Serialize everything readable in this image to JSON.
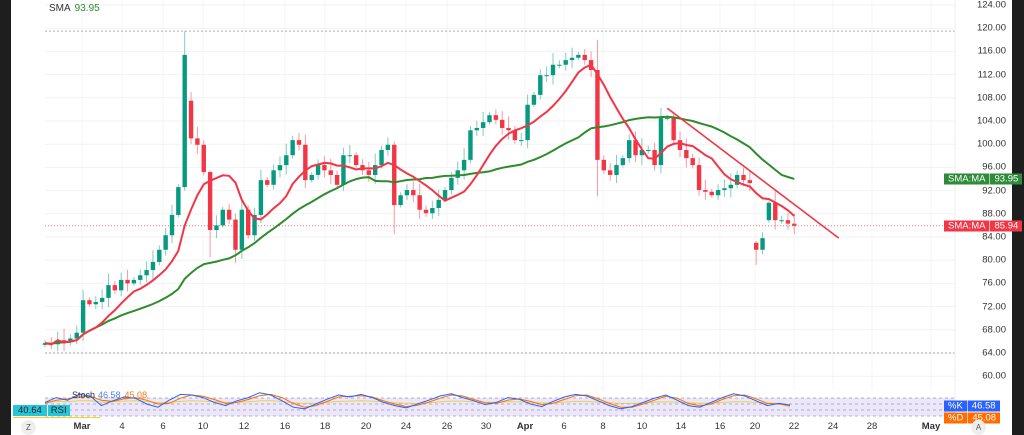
{
  "legend": {
    "name": "SMA",
    "value": "93.95"
  },
  "price_axis": [
    "124.00",
    "120.00",
    "116.00",
    "112.00",
    "108.00",
    "104.00",
    "100.00",
    "96.00",
    "92.00",
    "88.00",
    "84.00",
    "80.00",
    "76.00",
    "72.00",
    "68.00",
    "64.00",
    "60.00"
  ],
  "badges": {
    "sma_long": {
      "name": "SMA:MA",
      "value": "93.95",
      "color": "#2e8b3a"
    },
    "sma_short": {
      "name": "SMA:MA",
      "value": "85.94",
      "color": "#f23645"
    },
    "stoch_k": {
      "name": "%K",
      "value": "46.58",
      "color": "#2962ff"
    },
    "stoch_d": {
      "name": "%D",
      "value": "45.08",
      "color": "#ff6d00"
    }
  },
  "time_axis": [
    "Mar",
    "4",
    "6",
    "10",
    "12",
    "16",
    "18",
    "20",
    "24",
    "26",
    "30",
    "Apr",
    "6",
    "8",
    "10",
    "14",
    "16",
    "20",
    "22",
    "24",
    "28",
    "May"
  ],
  "buttons": {
    "z": "Z",
    "a": "A"
  },
  "oscillator": {
    "stoch_name": "Stoch",
    "k": "46.58",
    "d": "45.08",
    "rsi_name": "RSI",
    "rsi_value": "40.64"
  },
  "chart_data": {
    "type": "candlestick",
    "ylim": [
      58,
      125
    ],
    "closes": [
      65.7,
      65.5,
      66.2,
      65.9,
      66.5,
      67.5,
      73.1,
      72.4,
      72.8,
      73.5,
      75.7,
      74.8,
      76.6,
      76.0,
      76.6,
      77.4,
      78.3,
      79.7,
      81.8,
      84.3,
      87.8,
      92.6,
      115.4,
      101,
      99.9,
      95.2,
      85.2,
      86,
      88.7,
      87,
      81.8,
      88.7,
      84.3,
      87.8,
      93.8,
      93,
      95.5,
      96.4,
      98.1,
      100.7,
      99.9,
      93.8,
      94.7,
      96.4,
      95.5,
      94.7,
      93,
      98.1,
      98.1,
      96.4,
      95.5,
      94.7,
      96.4,
      99,
      99.9,
      89.5,
      91.2,
      92.1,
      91.2,
      88.7,
      88.1,
      89,
      90.4,
      92.1,
      94.2,
      95.5,
      97.3,
      102.4,
      102.8,
      103.8,
      105,
      104.2,
      102.8,
      102.4,
      100.7,
      100.7,
      106.8,
      108.5,
      111.9,
      111.9,
      113.7,
      113.7,
      114.5,
      114.9,
      115.4,
      114.5,
      112.8,
      97.3,
      95.5,
      94.7,
      96.4,
      97.6,
      100.7,
      98.1,
      99,
      99,
      96.4,
      104.5,
      104.5,
      100.7,
      99,
      97.6,
      96.4,
      92.1,
      91.8,
      91.2,
      92.1,
      92.4,
      93,
      94.7,
      93.8,
      93.3,
      81.8,
      83.8,
      89.9,
      86.9,
      86.9,
      86.3,
      85.94
    ],
    "overrides": {
      "22": [
        92.6,
        119.5,
        92.0,
        115.4
      ],
      "23": [
        107.5,
        109,
        100,
        101
      ],
      "26": [
        95.2,
        95.5,
        80.5,
        85.2
      ],
      "30": [
        87,
        88,
        79.5,
        81.8
      ],
      "55": [
        99.9,
        100.5,
        84.5,
        89.5
      ],
      "87": [
        112.8,
        118,
        91.0,
        97.3
      ],
      "112": [
        83,
        83.3,
        79.2,
        81.8
      ],
      "114": [
        86.9,
        90.2,
        86.5,
        89.9
      ]
    },
    "sma_short_period": 9,
    "sma_long_period": 30,
    "trendline": {
      "from": [
        98,
        106.2
      ],
      "to": [
        125,
        83.8
      ]
    },
    "range_high": 119.5,
    "range_low": 64,
    "last_price": 85.94,
    "oscillator": {
      "k": [
        55,
        70,
        62,
        80,
        75,
        45,
        60,
        72,
        68,
        50,
        40,
        62,
        80,
        78,
        70,
        55,
        45,
        60,
        70,
        85,
        78,
        60,
        40,
        35,
        50,
        65,
        78,
        72,
        80,
        70,
        55,
        45,
        38,
        50,
        62,
        75,
        82,
        70,
        60,
        48,
        55,
        70,
        65,
        50,
        42,
        58,
        72,
        80,
        75,
        60,
        45,
        35,
        42,
        55,
        68,
        78,
        62,
        45,
        40,
        55,
        70,
        82,
        75,
        60,
        45,
        52,
        46.58
      ],
      "d": [
        52,
        62,
        66,
        72,
        74,
        62,
        58,
        66,
        70,
        62,
        50,
        52,
        68,
        78,
        74,
        64,
        52,
        55,
        64,
        76,
        80,
        70,
        52,
        40,
        45,
        58,
        72,
        74,
        76,
        72,
        60,
        50,
        42,
        46,
        56,
        68,
        78,
        75,
        64,
        54,
        52,
        62,
        66,
        58,
        48,
        52,
        64,
        76,
        78,
        66,
        52,
        40,
        40,
        50,
        62,
        74,
        68,
        52,
        44,
        50,
        64,
        76,
        78,
        66,
        52,
        50,
        45.08
      ],
      "rsi": [
        55,
        58,
        57,
        60,
        60,
        56,
        57,
        59,
        60,
        58,
        54,
        55,
        58,
        60,
        59,
        57,
        55,
        55,
        57,
        60,
        60,
        58,
        54,
        52,
        52,
        55,
        58,
        59,
        60,
        59,
        56,
        54,
        52,
        52,
        54,
        57,
        59,
        59,
        57,
        55,
        55,
        57,
        57,
        55,
        53,
        54,
        56,
        58,
        58,
        56,
        54,
        52,
        52,
        54,
        56,
        57,
        56,
        54,
        52,
        53,
        55,
        57,
        57,
        55,
        53,
        52,
        40.64
      ]
    }
  }
}
